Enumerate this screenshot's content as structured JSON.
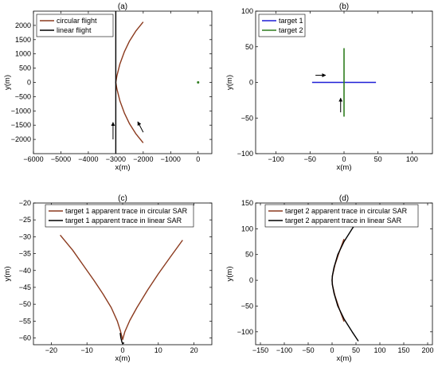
{
  "colors": {
    "circular_trace": "#8B3A1E",
    "linear_trace": "#000000",
    "target1": "#1f1fd6",
    "target2": "#2e7d1e",
    "circular_highlight": "#e0201c",
    "arrow": "#000000"
  },
  "chart_data": [
    {
      "id": "a",
      "type": "line",
      "title": "(a)",
      "xlabel": "x(m)",
      "ylabel": "y(m)",
      "xlim": [
        -6000,
        500
      ],
      "ylim": [
        -2500,
        2500
      ],
      "xticks": [
        -6000,
        -5000,
        -4000,
        -3000,
        -2000,
        -1000,
        0
      ],
      "yticks": [
        -2000,
        -1500,
        -1000,
        -500,
        0,
        500,
        1000,
        1500,
        2000
      ],
      "legend_position": "top-left",
      "series": [
        {
          "name": "circular flight",
          "color_key": "circular_trace",
          "x": [
            -2000,
            -2270,
            -2500,
            -2690,
            -2850,
            -2960,
            -3000,
            -2960,
            -2850,
            -2690,
            -2500,
            -2270,
            -2000
          ],
          "y": [
            -2120,
            -1800,
            -1450,
            -1070,
            -650,
            -230,
            0,
            230,
            650,
            1070,
            1450,
            1800,
            2120
          ]
        },
        {
          "name": "linear flight",
          "color_key": "linear_trace",
          "x": [
            -3000,
            -3000
          ],
          "y": [
            -2500,
            2500
          ]
        }
      ],
      "arrows": [
        {
          "from": [
            -3100,
            -2000
          ],
          "to": [
            -3100,
            -1400
          ]
        },
        {
          "from": [
            -2000,
            -1750
          ],
          "to": [
            -2200,
            -1380
          ]
        }
      ],
      "markers": [
        {
          "x": 0,
          "y": 0
        }
      ]
    },
    {
      "id": "b",
      "type": "line",
      "title": "(b)",
      "xlabel": "x(m)",
      "ylabel": "y(m)",
      "xlim": [
        -130,
        130
      ],
      "ylim": [
        -100,
        100
      ],
      "xticks": [
        -100,
        -50,
        0,
        50,
        100
      ],
      "yticks": [
        -100,
        -50,
        0,
        50,
        100
      ],
      "legend_position": "top-left",
      "series": [
        {
          "name": "target 1",
          "color_key": "target1",
          "x": [
            -47,
            47
          ],
          "y": [
            0,
            0
          ]
        },
        {
          "name": "target 2",
          "color_key": "target2",
          "x": [
            0,
            0
          ],
          "y": [
            -48,
            48
          ]
        }
      ],
      "arrows": [
        {
          "from": [
            -42,
            10
          ],
          "to": [
            -27,
            10
          ]
        },
        {
          "from": [
            -5,
            -42
          ],
          "to": [
            -5,
            -22
          ]
        }
      ]
    },
    {
      "id": "c",
      "type": "line",
      "title": "(c)",
      "xlabel": "x(m)",
      "ylabel": "y(m)",
      "xlim": [
        -25,
        25
      ],
      "ylim": [
        -62,
        -20
      ],
      "xticks": [
        -20,
        -10,
        0,
        10,
        20
      ],
      "yticks": [
        -60,
        -55,
        -50,
        -45,
        -40,
        -35,
        -30,
        -25,
        -20
      ],
      "legend_position": "top",
      "series": [
        {
          "name": "target 1 apparent trace in circular SAR",
          "color_key": "circular_trace",
          "x": [
            -17.5,
            -14,
            -11,
            -8,
            -5.5,
            -3.2,
            -1.5,
            -0.6,
            0,
            0.6,
            2,
            4,
            7,
            10,
            13.5,
            16.8
          ],
          "y": [
            -29.5,
            -34,
            -38.5,
            -43,
            -47,
            -51,
            -55,
            -58,
            -60.5,
            -58.2,
            -54.8,
            -51,
            -45.8,
            -41,
            -35.8,
            -31
          ]
        },
        {
          "name": "target 1 apparent trace in linear SAR",
          "color_key": "linear_trace",
          "x": [
            -0.7,
            -0.5,
            -0.2,
            0,
            0.4
          ],
          "y": [
            -58.5,
            -60,
            -61.2,
            -61.7,
            -61.4
          ]
        }
      ]
    },
    {
      "id": "d",
      "type": "line",
      "title": "(d)",
      "xlabel": "x(m)",
      "ylabel": "y(m)",
      "xlim": [
        -160,
        210
      ],
      "ylim": [
        -125,
        150
      ],
      "xticks": [
        -150,
        -100,
        -50,
        0,
        50,
        100,
        150,
        200
      ],
      "yticks": [
        -100,
        -50,
        0,
        50,
        100,
        150
      ],
      "legend_position": "top",
      "series": [
        {
          "name": "target 2 apparent trace in circular SAR",
          "color_key": "circular_trace",
          "x": [
            25,
            15,
            6,
            1,
            0,
            1,
            6,
            15,
            25
          ],
          "y": [
            -80,
            -55,
            -30,
            -10,
            0,
            10,
            30,
            55,
            80
          ]
        },
        {
          "name": "target 2 apparent trace in linear SAR",
          "color_key": "linear_trace",
          "x": [
            55,
            42,
            25,
            12,
            4,
            0.5,
            0,
            0.5,
            4,
            12,
            25,
            42,
            55
          ],
          "y": [
            -118,
            -100,
            -75,
            -50,
            -25,
            -8,
            0,
            8,
            25,
            50,
            75,
            100,
            118
          ]
        }
      ]
    }
  ]
}
